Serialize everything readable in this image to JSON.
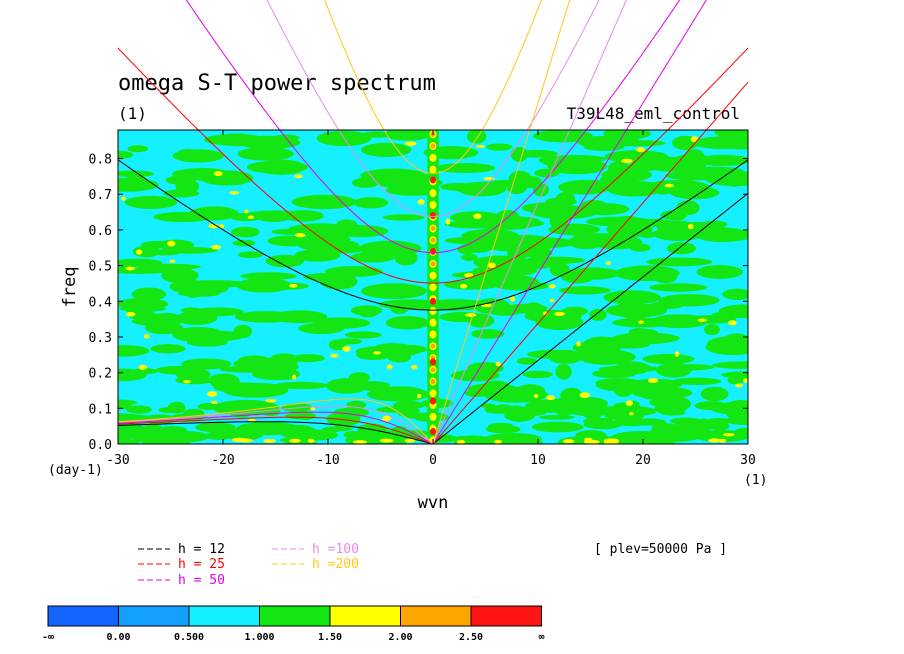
{
  "chart_data": {
    "type": "heatmap",
    "title": "omega S-T power spectrum",
    "subtitle_left": "(1)",
    "subtitle_right": "T39L48_eml_control",
    "xlabel": "wvn",
    "ylabel": "freq",
    "x_unit_label": "(1)",
    "y_unit_label": "(day-1)",
    "xlim": [
      -30,
      30
    ],
    "ylim": [
      0,
      0.88
    ],
    "xticks": [
      -30,
      -20,
      -10,
      0,
      10,
      20,
      30
    ],
    "xtick_labels": [
      "-30",
      "-20",
      "-10",
      "0",
      "10",
      "20",
      "30"
    ],
    "yticks": [
      0,
      0.1,
      0.2,
      0.3,
      0.4,
      0.5,
      0.6,
      0.7,
      0.8
    ],
    "ytick_labels": [
      "0.0",
      "0.1",
      "0.2",
      "0.3",
      "0.4",
      "0.5",
      "0.6",
      "0.7",
      "0.8"
    ],
    "annotation": "[ plev=50000 Pa ]",
    "colorbar": {
      "levels": [
        "-∞",
        "0.00",
        "0.500",
        "1.000",
        "1.50",
        "2.00",
        "2.50",
        "∞"
      ],
      "colors": [
        "#1464ff",
        "#14a0ff",
        "#14f0ff",
        "#14e614",
        "#ffff00",
        "#ffa500",
        "#ff1414"
      ]
    },
    "dispersion_curves": [
      {
        "label": "h = 12",
        "h": 12,
        "color": "#000000"
      },
      {
        "label": "h = 25",
        "h": 25,
        "color": "#ff0000"
      },
      {
        "label": "h = 50",
        "h": 50,
        "color": "#e600e6"
      },
      {
        "label": "h =100",
        "h": 100,
        "color": "#e68ce6"
      },
      {
        "label": "h =200",
        "h": 200,
        "color": "#ffc814"
      }
    ]
  }
}
